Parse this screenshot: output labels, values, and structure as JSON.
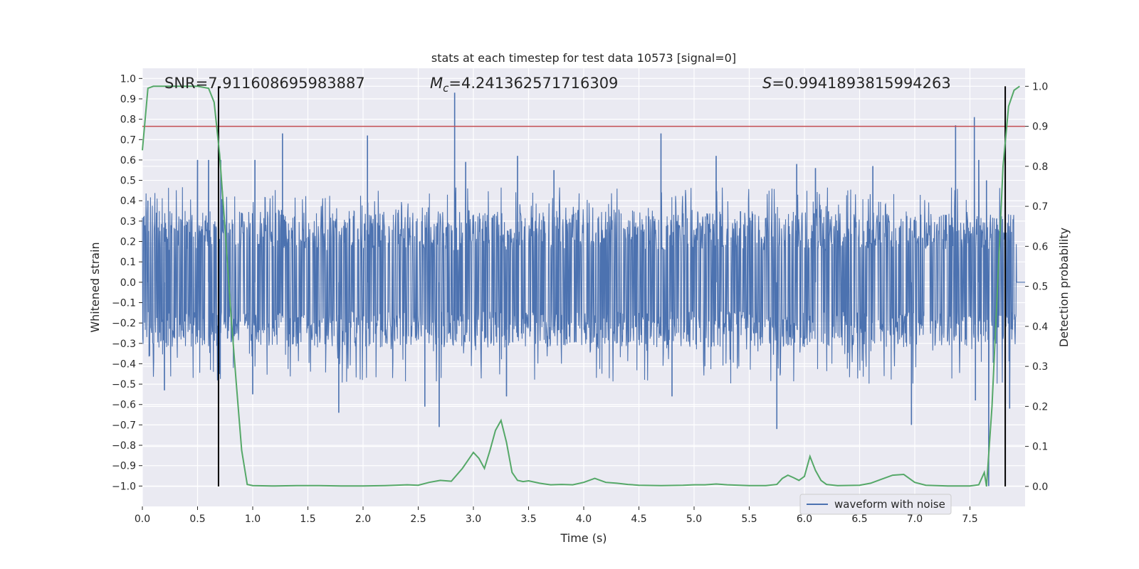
{
  "chart_data": {
    "type": "line",
    "title": "stats at each timestep for test data 10573 [signal=0]",
    "xlabel": "Time (s)",
    "ylabel": "Whitened strain",
    "y2label": "Detection probability",
    "xlim": [
      0.0,
      8.0
    ],
    "ylim": [
      -1.1,
      1.05
    ],
    "y2lim": [
      -0.05,
      1.045
    ],
    "xticks": [
      "0.0",
      "0.5",
      "1.0",
      "1.5",
      "2.0",
      "2.5",
      "3.0",
      "3.5",
      "4.0",
      "4.5",
      "5.0",
      "5.5",
      "6.0",
      "6.5",
      "7.0",
      "7.5"
    ],
    "yticks": [
      "1.0",
      "0.9",
      "0.8",
      "0.7",
      "0.6",
      "0.5",
      "0.4",
      "0.3",
      "0.2",
      "0.1",
      "0.0",
      "−0.1",
      "−0.2",
      "−0.3",
      "−0.4",
      "−0.5",
      "−0.6",
      "−0.7",
      "−0.8",
      "−0.9",
      "−1.0"
    ],
    "y2ticks": [
      "1.0",
      "0.9",
      "0.8",
      "0.7",
      "0.6",
      "0.5",
      "0.4",
      "0.3",
      "0.2",
      "0.1",
      "0.0"
    ],
    "grid": true,
    "legend": {
      "placement": "lower-right",
      "entries": [
        "waveform with noise"
      ]
    },
    "annotations": {
      "snr": "SNR=7.911608695983887",
      "mc_symbol": "M",
      "mc_sub": "c",
      "mc_value": "=4.241362571716309",
      "s_symbol": "S",
      "s_value": "=0.9941893815994263"
    },
    "waveform": {
      "name": "waveform with noise",
      "color": "#4c72b0",
      "band_lower": -0.32,
      "band_upper": 0.35,
      "peaks": [
        [
          0.05,
          0.4
        ],
        [
          0.5,
          0.6
        ],
        [
          0.6,
          0.6
        ],
        [
          0.71,
          0.6
        ],
        [
          1.02,
          0.6
        ],
        [
          1.27,
          0.73
        ],
        [
          2.04,
          0.72
        ],
        [
          2.83,
          0.93
        ],
        [
          2.93,
          0.59
        ],
        [
          3.4,
          0.62
        ],
        [
          3.73,
          0.55
        ],
        [
          4.7,
          0.73
        ],
        [
          5.2,
          0.62
        ],
        [
          5.93,
          0.58
        ],
        [
          6.1,
          0.56
        ],
        [
          6.62,
          0.57
        ],
        [
          7.37,
          0.77
        ],
        [
          7.54,
          0.81
        ],
        [
          7.58,
          0.6
        ],
        [
          7.65,
          0.5
        ]
      ],
      "troughs": [
        [
          0.2,
          -0.53
        ],
        [
          0.7,
          -0.45
        ],
        [
          1.0,
          -0.55
        ],
        [
          1.78,
          -0.64
        ],
        [
          2.56,
          -0.61
        ],
        [
          2.69,
          -0.71
        ],
        [
          3.3,
          -0.56
        ],
        [
          4.8,
          -0.56
        ],
        [
          5.75,
          -0.72
        ],
        [
          6.97,
          -0.7
        ],
        [
          7.55,
          -0.58
        ],
        [
          7.67,
          -1.0
        ],
        [
          7.86,
          -0.62
        ]
      ]
    },
    "threshold": {
      "color": "#c44e52",
      "value": 0.9
    },
    "vlines": {
      "color": "#000000",
      "x": [
        0.69,
        7.82
      ]
    },
    "probability": {
      "color": "#55a868",
      "x": [
        0.0,
        0.05,
        0.1,
        0.2,
        0.3,
        0.4,
        0.5,
        0.6,
        0.65,
        0.7,
        0.75,
        0.8,
        0.85,
        0.9,
        0.95,
        1.0,
        1.2,
        1.4,
        1.6,
        1.8,
        2.0,
        2.2,
        2.4,
        2.5,
        2.6,
        2.7,
        2.8,
        2.9,
        2.95,
        3.0,
        3.05,
        3.1,
        3.15,
        3.2,
        3.25,
        3.3,
        3.35,
        3.4,
        3.45,
        3.5,
        3.6,
        3.7,
        3.8,
        3.9,
        4.0,
        4.1,
        4.2,
        4.3,
        4.4,
        4.5,
        4.7,
        4.9,
        5.0,
        5.1,
        5.2,
        5.3,
        5.5,
        5.65,
        5.75,
        5.8,
        5.85,
        5.9,
        5.95,
        6.0,
        6.05,
        6.1,
        6.15,
        6.2,
        6.3,
        6.5,
        6.6,
        6.7,
        6.8,
        6.9,
        7.0,
        7.1,
        7.3,
        7.5,
        7.58,
        7.63,
        7.65,
        7.7,
        7.75,
        7.8,
        7.85,
        7.9,
        7.95
      ],
      "y": [
        0.84,
        0.995,
        1.0,
        1.0,
        1.0,
        1.0,
        1.0,
        0.995,
        0.96,
        0.83,
        0.64,
        0.44,
        0.26,
        0.09,
        0.005,
        0.002,
        0.001,
        0.002,
        0.002,
        0.001,
        0.001,
        0.002,
        0.004,
        0.003,
        0.01,
        0.015,
        0.013,
        0.045,
        0.065,
        0.085,
        0.07,
        0.045,
        0.09,
        0.14,
        0.165,
        0.11,
        0.035,
        0.015,
        0.012,
        0.014,
        0.008,
        0.004,
        0.005,
        0.004,
        0.01,
        0.02,
        0.01,
        0.008,
        0.005,
        0.003,
        0.002,
        0.003,
        0.004,
        0.004,
        0.006,
        0.004,
        0.002,
        0.002,
        0.005,
        0.02,
        0.028,
        0.022,
        0.015,
        0.025,
        0.075,
        0.04,
        0.015,
        0.005,
        0.002,
        0.003,
        0.008,
        0.018,
        0.028,
        0.03,
        0.01,
        0.003,
        0.001,
        0.001,
        0.004,
        0.035,
        0.0,
        0.2,
        0.5,
        0.8,
        0.95,
        0.99,
        1.0
      ]
    }
  }
}
